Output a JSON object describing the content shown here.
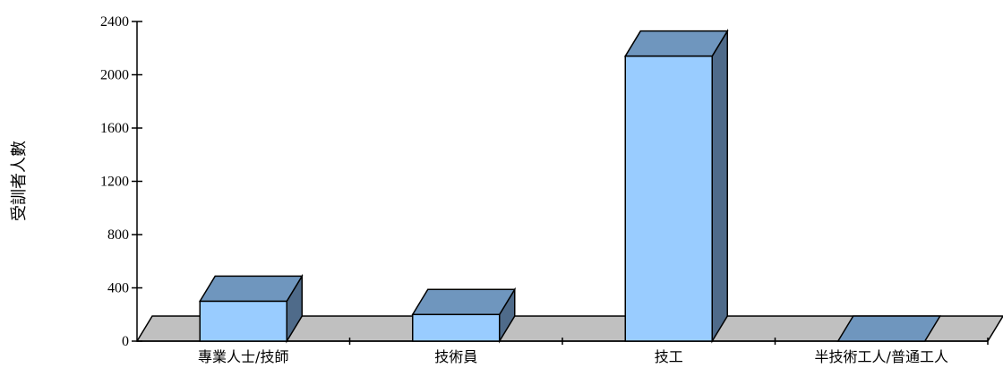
{
  "chart_data": {
    "type": "bar",
    "style": "3d",
    "categories": [
      "專業人士/技師",
      "技術員",
      "技工",
      "半技術工人/普通工人"
    ],
    "values": [
      300,
      200,
      2140,
      0
    ],
    "ylabel": "受訓者人數",
    "ylim": [
      0,
      2400
    ],
    "yticks": [
      0,
      400,
      800,
      1200,
      1600,
      2000,
      2400
    ],
    "grid": false,
    "colors": {
      "bar_front": "#99ccff",
      "bar_top": "#6f96be",
      "bar_side": "#4f6b8a",
      "floor": "#c0c0c0",
      "axis": "#000000"
    }
  }
}
